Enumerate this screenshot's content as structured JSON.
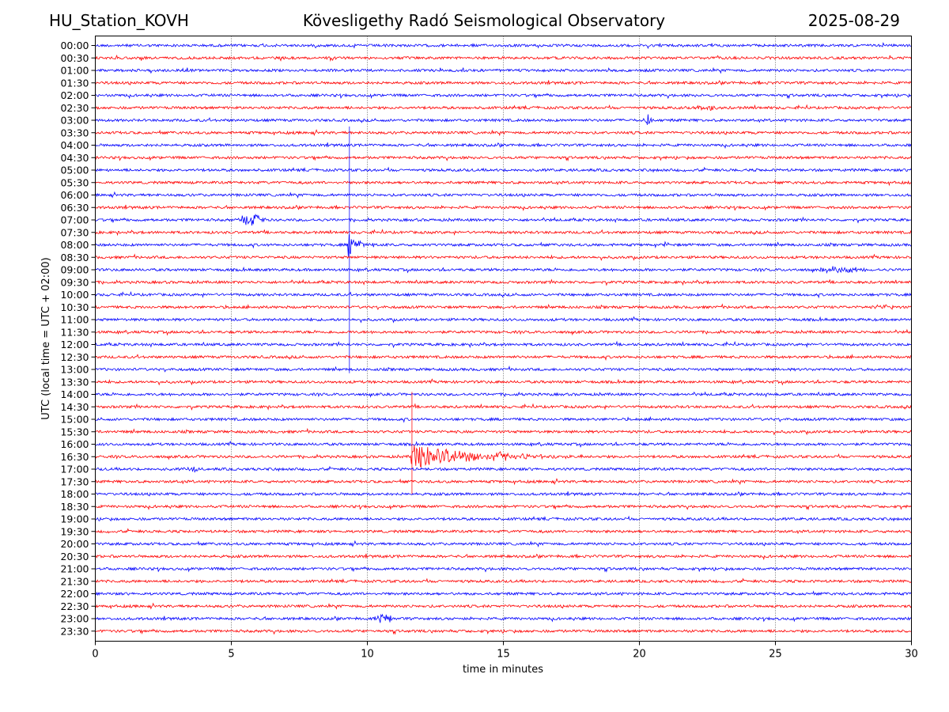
{
  "header": {
    "station": "HU_Station_KOVH",
    "observatory": "Kövesligethy Radó Seismological Observatory",
    "date": "2025-08-29"
  },
  "chart_data": {
    "type": "line",
    "title": "Kövesligethy Radó Seismological Observatory",
    "xlabel": "time in minutes",
    "ylabel": "UTC (local time = UTC + 02:00)",
    "xlim": [
      0,
      30
    ],
    "xticks": [
      "0",
      "5",
      "10",
      "15",
      "20",
      "25",
      "30"
    ],
    "grid": "vertical dotted at x ticks",
    "colors": {
      "even_rows": "#0000ff",
      "odd_rows": "#ff0000"
    },
    "rows": [
      "00:00",
      "00:30",
      "01:00",
      "01:30",
      "02:00",
      "02:30",
      "03:00",
      "03:30",
      "04:00",
      "04:30",
      "05:00",
      "05:30",
      "06:00",
      "06:30",
      "07:00",
      "07:30",
      "08:00",
      "08:30",
      "09:00",
      "09:30",
      "10:00",
      "10:30",
      "11:00",
      "11:30",
      "12:00",
      "12:30",
      "13:00",
      "13:30",
      "14:00",
      "14:30",
      "15:00",
      "15:30",
      "16:00",
      "16:30",
      "17:00",
      "17:30",
      "18:00",
      "18:30",
      "19:00",
      "19:30",
      "20:00",
      "20:30",
      "21:00",
      "21:30",
      "22:00",
      "22:30",
      "23:00",
      "23:30"
    ],
    "events": [
      {
        "row": "02:30",
        "start_min": 22.0,
        "end_min": 23.0,
        "amp": 0.18,
        "shape": "burst"
      },
      {
        "row": "03:00",
        "start_min": 20.1,
        "end_min": 20.5,
        "amp": 0.45,
        "shape": "burst"
      },
      {
        "row": "07:00",
        "start_min": 5.2,
        "end_min": 6.3,
        "amp": 0.45,
        "shape": "burst"
      },
      {
        "row": "08:00",
        "start_min": 9.3,
        "end_min": 10.5,
        "amp": 0.9,
        "shape": "quake",
        "spike_up_rows": 9.5,
        "spike_down_rows": 10.3
      },
      {
        "row": "08:00",
        "start_min": 20.8,
        "end_min": 21.2,
        "amp": 0.2,
        "shape": "burst"
      },
      {
        "row": "09:00",
        "start_min": 26.5,
        "end_min": 28.5,
        "amp": 0.25,
        "shape": "burst"
      },
      {
        "row": "10:30",
        "start_min": 28.6,
        "end_min": 29.4,
        "amp": 0.18,
        "shape": "burst"
      },
      {
        "row": "16:30",
        "start_min": 11.6,
        "end_min": 18.0,
        "amp": 1.2,
        "shape": "quake",
        "spike_up_rows": 5.2,
        "spike_down_rows": 3.0
      },
      {
        "row": "16:30",
        "start_min": 14.5,
        "end_min": 15.3,
        "amp": 0.35,
        "shape": "burst"
      },
      {
        "row": "17:00",
        "start_min": 3.2,
        "end_min": 3.8,
        "amp": 0.3,
        "shape": "burst"
      },
      {
        "row": "23:00",
        "start_min": 10.3,
        "end_min": 11.0,
        "amp": 0.4,
        "shape": "burst"
      }
    ]
  }
}
